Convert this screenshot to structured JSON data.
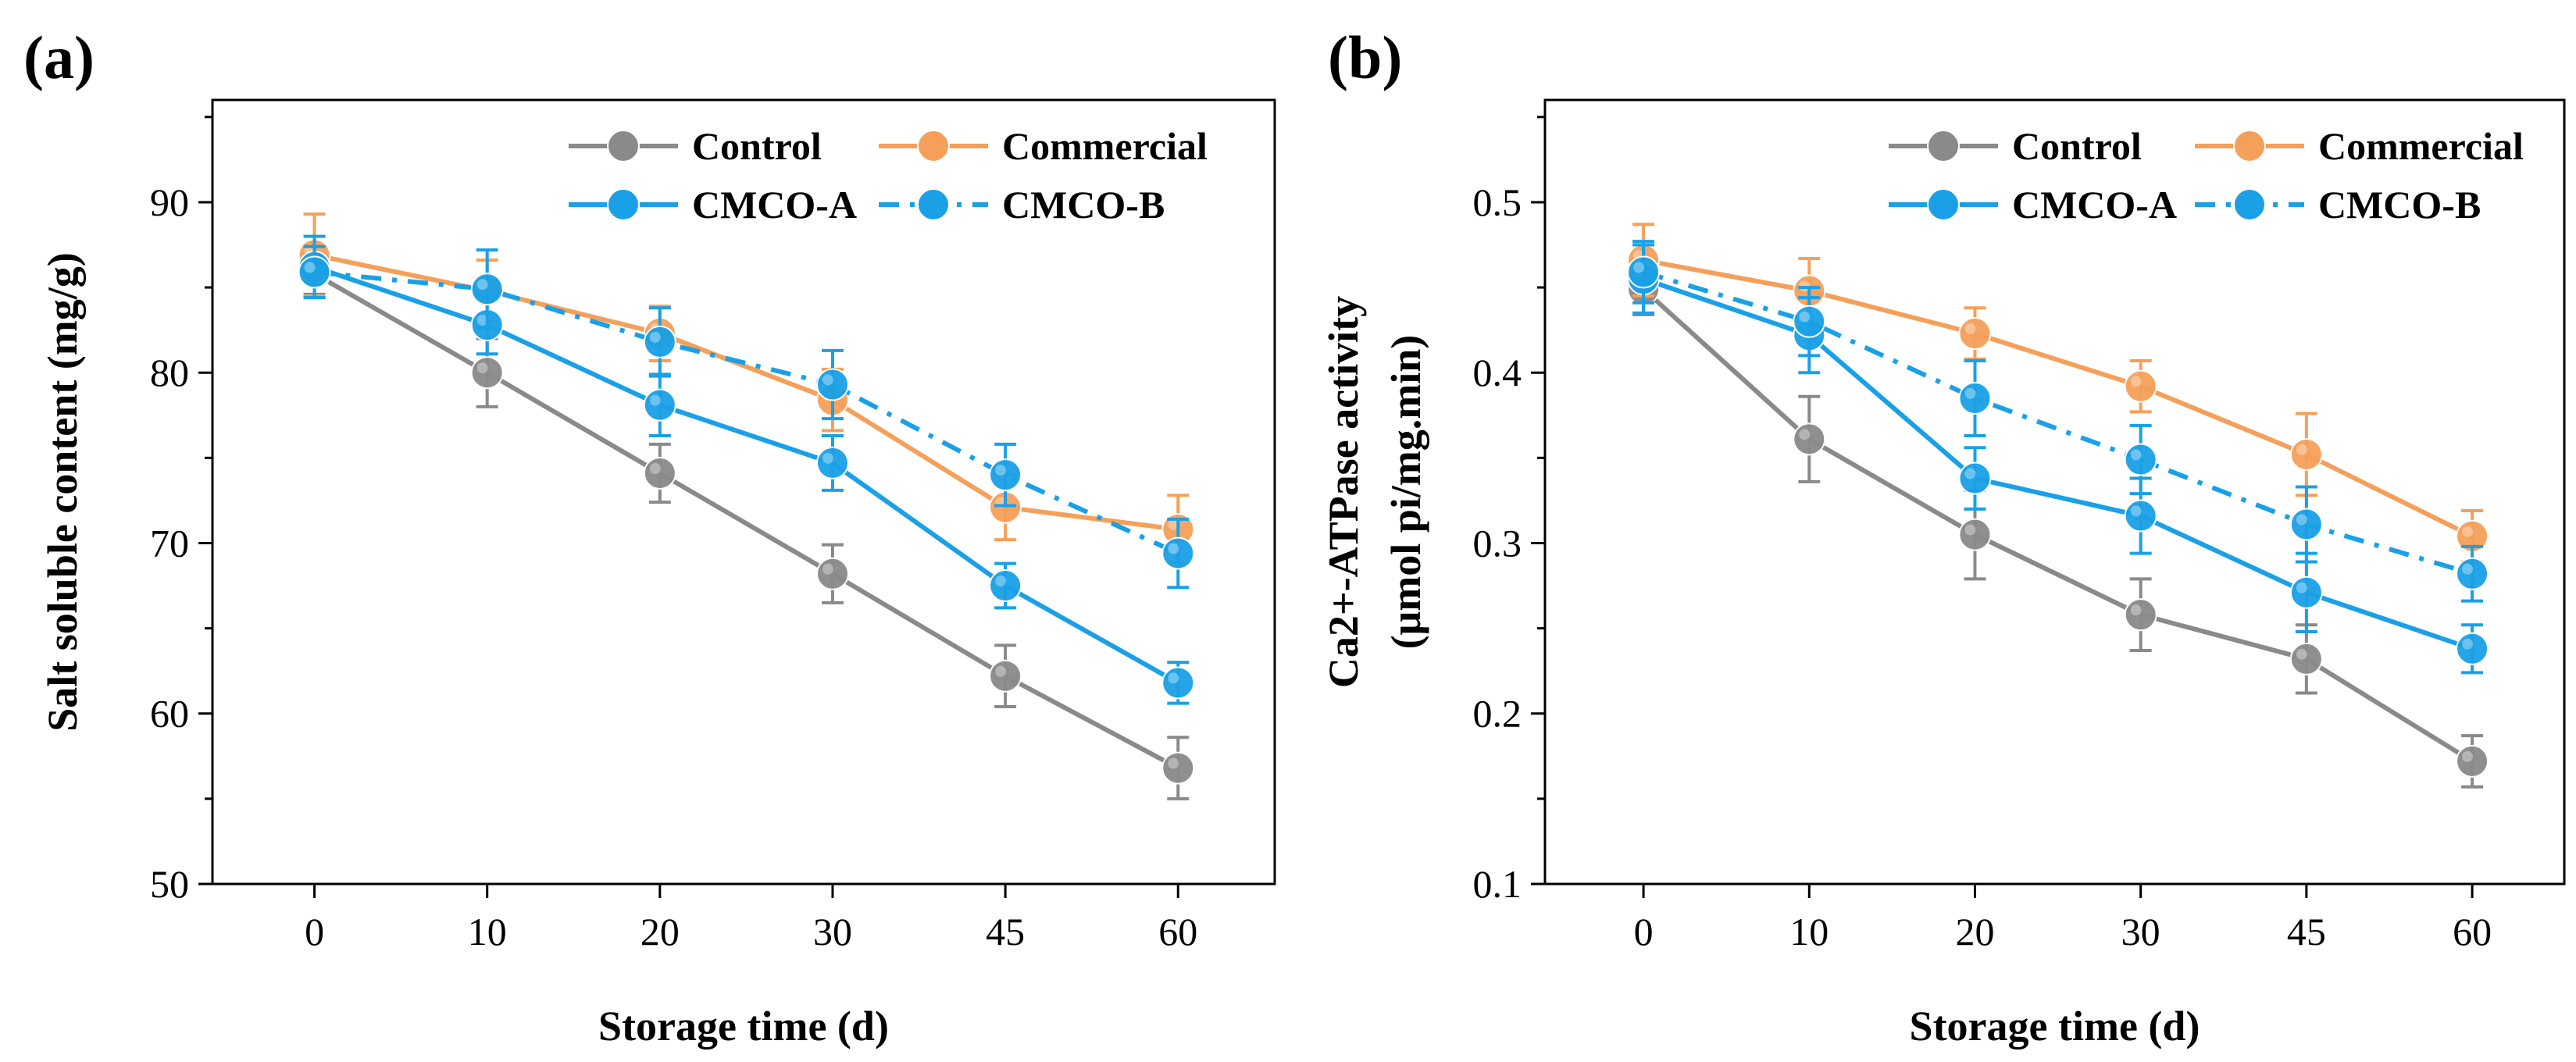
{
  "chart_data": [
    {
      "type": "line",
      "panel_label": "(a)",
      "categories": [
        "0",
        "10",
        "20",
        "30",
        "45",
        "60"
      ],
      "xlabel": "Storage time (d)",
      "ylabel_lines": [
        "Salt soluble content (mg/g)"
      ],
      "ylim": [
        50,
        96
      ],
      "yticks": [
        "50",
        "60",
        "70",
        "80",
        "90"
      ],
      "ytick_values": [
        50,
        60,
        70,
        80,
        90
      ],
      "series": [
        {
          "name": "Control",
          "color": "#8a8a8a",
          "dash": "solid",
          "values": [
            85.8,
            80.0,
            74.1,
            68.2,
            62.2,
            56.8
          ],
          "errors": [
            1.2,
            2.0,
            1.7,
            1.7,
            1.8,
            1.8
          ]
        },
        {
          "name": "Commercial",
          "color": "#f5a05a",
          "dash": "solid",
          "values": [
            86.9,
            84.8,
            82.3,
            78.4,
            72.1,
            70.8
          ],
          "errors": [
            2.4,
            1.8,
            1.6,
            1.8,
            1.9,
            2.0
          ]
        },
        {
          "name": "CMCO-A",
          "color": "#1aa0e6",
          "dash": "solid",
          "values": [
            86.2,
            82.8,
            78.1,
            74.7,
            67.5,
            61.8
          ],
          "errors": [
            1.8,
            1.7,
            1.8,
            1.6,
            1.3,
            1.2
          ]
        },
        {
          "name": "CMCO-B",
          "color": "#1aa0e6",
          "dash": "dashdot",
          "values": [
            85.9,
            84.9,
            81.8,
            79.3,
            74.0,
            69.4
          ],
          "errors": [
            1.5,
            2.3,
            2.0,
            2.0,
            1.8,
            2.0
          ]
        }
      ]
    },
    {
      "type": "line",
      "panel_label": "(b)",
      "categories": [
        "0",
        "10",
        "20",
        "30",
        "45",
        "60"
      ],
      "xlabel": "Storage time (d)",
      "ylabel_lines": [
        "Ca2+-ATPase activity",
        "(μmol pi/mg.min)"
      ],
      "ylim": [
        0.1,
        0.56
      ],
      "yticks": [
        "0.1",
        "0.2",
        "0.3",
        "0.4",
        "0.5"
      ],
      "ytick_values": [
        0.1,
        0.2,
        0.3,
        0.4,
        0.5
      ],
      "series": [
        {
          "name": "Control",
          "color": "#8a8a8a",
          "dash": "solid",
          "values": [
            0.449,
            0.361,
            0.305,
            0.258,
            0.232,
            0.172
          ],
          "errors": [
            0.015,
            0.025,
            0.026,
            0.021,
            0.02,
            0.015
          ]
        },
        {
          "name": "Commercial",
          "color": "#f5a05a",
          "dash": "solid",
          "values": [
            0.466,
            0.448,
            0.423,
            0.392,
            0.352,
            0.304
          ],
          "errors": [
            0.021,
            0.019,
            0.015,
            0.015,
            0.024,
            0.015
          ]
        },
        {
          "name": "CMCO-A",
          "color": "#1aa0e6",
          "dash": "solid",
          "values": [
            0.455,
            0.422,
            0.338,
            0.316,
            0.271,
            0.238
          ],
          "errors": [
            0.02,
            0.022,
            0.018,
            0.022,
            0.023,
            0.014
          ]
        },
        {
          "name": "CMCO-B",
          "color": "#1aa0e6",
          "dash": "dashdot",
          "values": [
            0.459,
            0.43,
            0.385,
            0.349,
            0.311,
            0.282
          ],
          "errors": [
            0.018,
            0.02,
            0.022,
            0.02,
            0.022,
            0.016
          ]
        }
      ]
    }
  ]
}
